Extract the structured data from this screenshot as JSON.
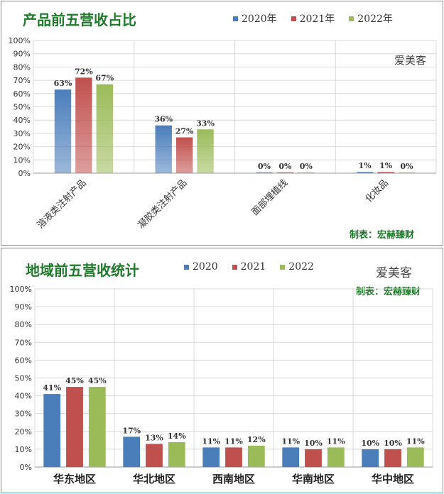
{
  "chart_data": [
    {
      "type": "bar",
      "title": "产品前五营收占比",
      "categories": [
        "溶液类注射产品",
        "凝胶类注射产品",
        "面部埋植线",
        "化妆品"
      ],
      "series": [
        {
          "name": "2020年",
          "values": [
            63,
            36,
            0,
            1
          ],
          "color": "#4a7ebb"
        },
        {
          "name": "2021年",
          "values": [
            72,
            27,
            0,
            1
          ],
          "color": "#c0504d"
        },
        {
          "name": "2022年",
          "values": [
            67,
            33,
            0,
            0
          ],
          "color": "#9bbb59"
        }
      ],
      "data_labels": [
        [
          "63%",
          "36%",
          "0%",
          "1%"
        ],
        [
          "72%",
          "27%",
          "0%",
          "1%"
        ],
        [
          "67%",
          "33%",
          "0%",
          "0%"
        ]
      ],
      "ylim": [
        0,
        100
      ],
      "yticks": [
        "0%",
        "10%",
        "20%",
        "30%",
        "40%",
        "50%",
        "60%",
        "70%",
        "80%",
        "90%",
        "100%"
      ],
      "grid": true,
      "legend_position": "top-right",
      "watermark": "爱美客",
      "credit": "制表：宏赫臻财"
    },
    {
      "type": "bar",
      "title": "地域前五营收统计",
      "categories": [
        "华东地区",
        "华北地区",
        "西南地区",
        "华南地区",
        "华中地区"
      ],
      "series": [
        {
          "name": "2020",
          "values": [
            41,
            17,
            11,
            11,
            10
          ],
          "color": "#4a7ebb"
        },
        {
          "name": "2021",
          "values": [
            45,
            13,
            11,
            10,
            10
          ],
          "color": "#c0504d"
        },
        {
          "name": "2022",
          "values": [
            45,
            14,
            12,
            11,
            11
          ],
          "color": "#9bbb59"
        }
      ],
      "data_labels": [
        [
          "41%",
          "17%",
          "11%",
          "11%",
          "10%"
        ],
        [
          "45%",
          "13%",
          "11%",
          "10%",
          "10%"
        ],
        [
          "45%",
          "14%",
          "12%",
          "11%",
          "11%"
        ]
      ],
      "ylim": [
        0,
        100
      ],
      "yticks": [
        "0%",
        "10%",
        "20%",
        "30%",
        "40%",
        "50%",
        "60%",
        "70%",
        "80%",
        "90%",
        "100%"
      ],
      "grid": true,
      "legend_position": "top",
      "watermark": "爱美客",
      "credit": "制表：宏赫臻财"
    }
  ]
}
